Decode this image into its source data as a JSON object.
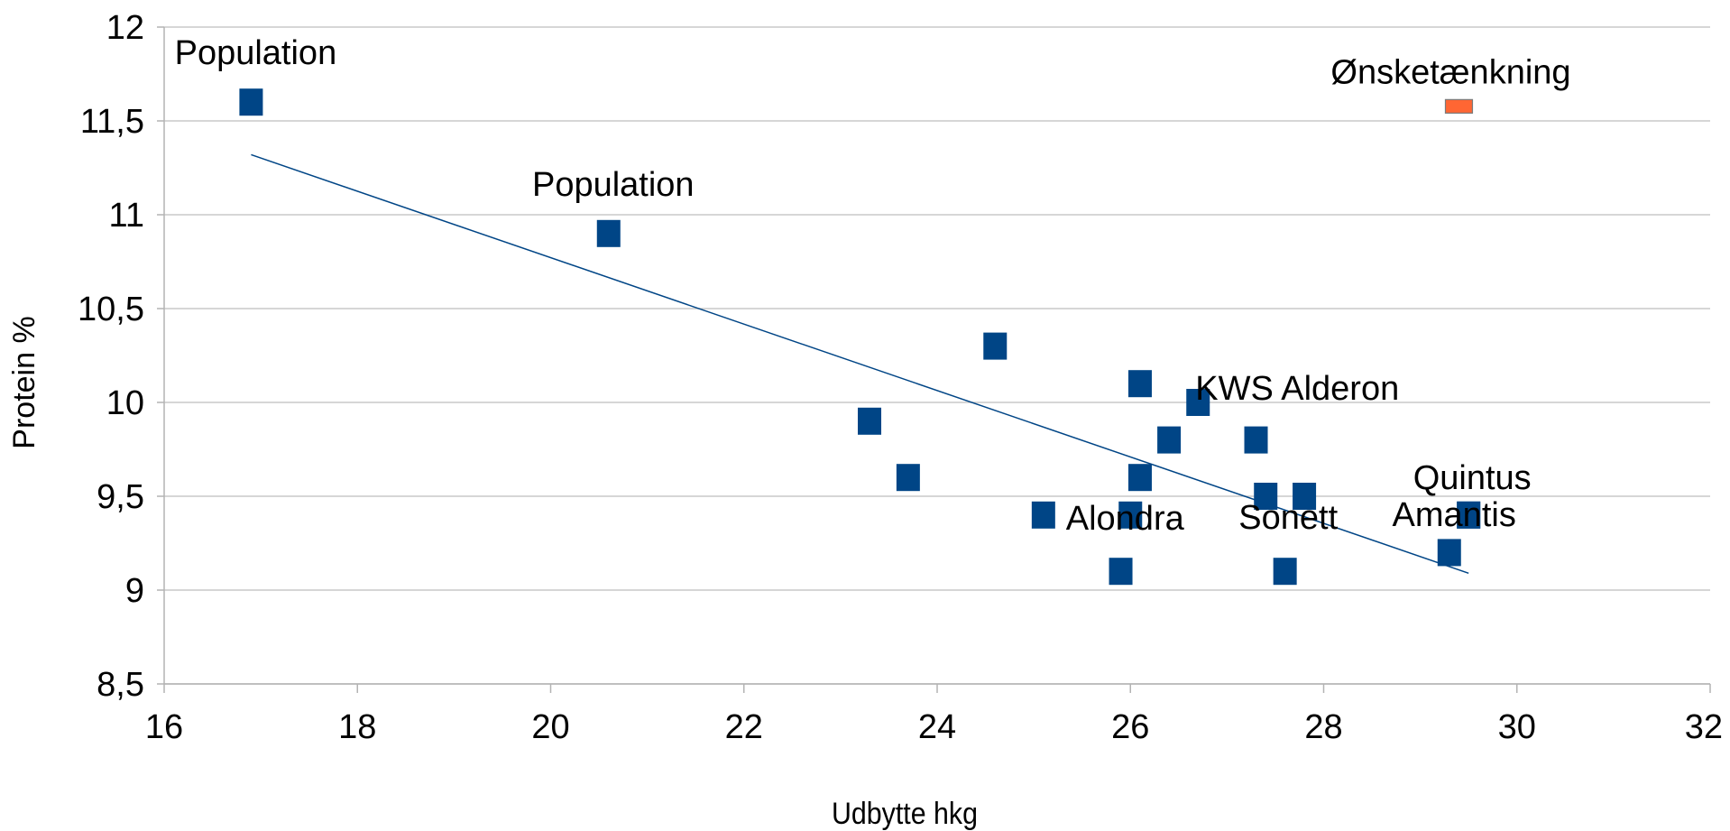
{
  "chart_data": {
    "type": "scatter",
    "xlabel": "Udbytte hkg",
    "ylabel": "Protein %",
    "xlim": [
      16,
      32
    ],
    "ylim": [
      8.5,
      12
    ],
    "x_ticks": [
      "16",
      "18",
      "20",
      "22",
      "24",
      "26",
      "28",
      "30",
      "32"
    ],
    "y_ticks": [
      "8,5",
      "9",
      "9,5",
      "10",
      "10,5",
      "11",
      "11,5",
      "12"
    ],
    "grid": "horizontal",
    "series": [
      {
        "color": "#004586",
        "marker": "square",
        "points": [
          {
            "x": 16.9,
            "y": 11.6,
            "label": "Population"
          },
          {
            "x": 20.6,
            "y": 10.9,
            "label": "Population"
          },
          {
            "x": 23.3,
            "y": 9.9,
            "label": ""
          },
          {
            "x": 23.7,
            "y": 9.6,
            "label": ""
          },
          {
            "x": 24.6,
            "y": 10.3,
            "label": ""
          },
          {
            "x": 25.1,
            "y": 9.4,
            "label": ""
          },
          {
            "x": 25.9,
            "y": 9.1,
            "label": ""
          },
          {
            "x": 26.0,
            "y": 9.4,
            "label": "Alondra"
          },
          {
            "x": 26.1,
            "y": 10.1,
            "label": ""
          },
          {
            "x": 26.1,
            "y": 9.6,
            "label": ""
          },
          {
            "x": 26.4,
            "y": 9.8,
            "label": ""
          },
          {
            "x": 26.7,
            "y": 10.0,
            "label": "KWS Alderon"
          },
          {
            "x": 27.3,
            "y": 9.8,
            "label": ""
          },
          {
            "x": 27.4,
            "y": 9.5,
            "label": "Sonett"
          },
          {
            "x": 27.6,
            "y": 9.1,
            "label": ""
          },
          {
            "x": 27.8,
            "y": 9.5,
            "label": ""
          },
          {
            "x": 29.3,
            "y": 9.2,
            "label": ""
          },
          {
            "x": 29.5,
            "y": 9.4,
            "label": "Quintus"
          },
          {
            "x": 29.5,
            "y": 9.4,
            "label": "Amantis"
          }
        ]
      },
      {
        "color": "#ff6633",
        "marker": "rectangle",
        "points": [
          {
            "x": 29.4,
            "y": 11.58,
            "label": "Ønsketænkning"
          }
        ]
      }
    ],
    "trendline": {
      "color": "#004586",
      "from": {
        "x": 16.9,
        "y": 11.32
      },
      "to": {
        "x": 29.5,
        "y": 9.09
      }
    }
  }
}
